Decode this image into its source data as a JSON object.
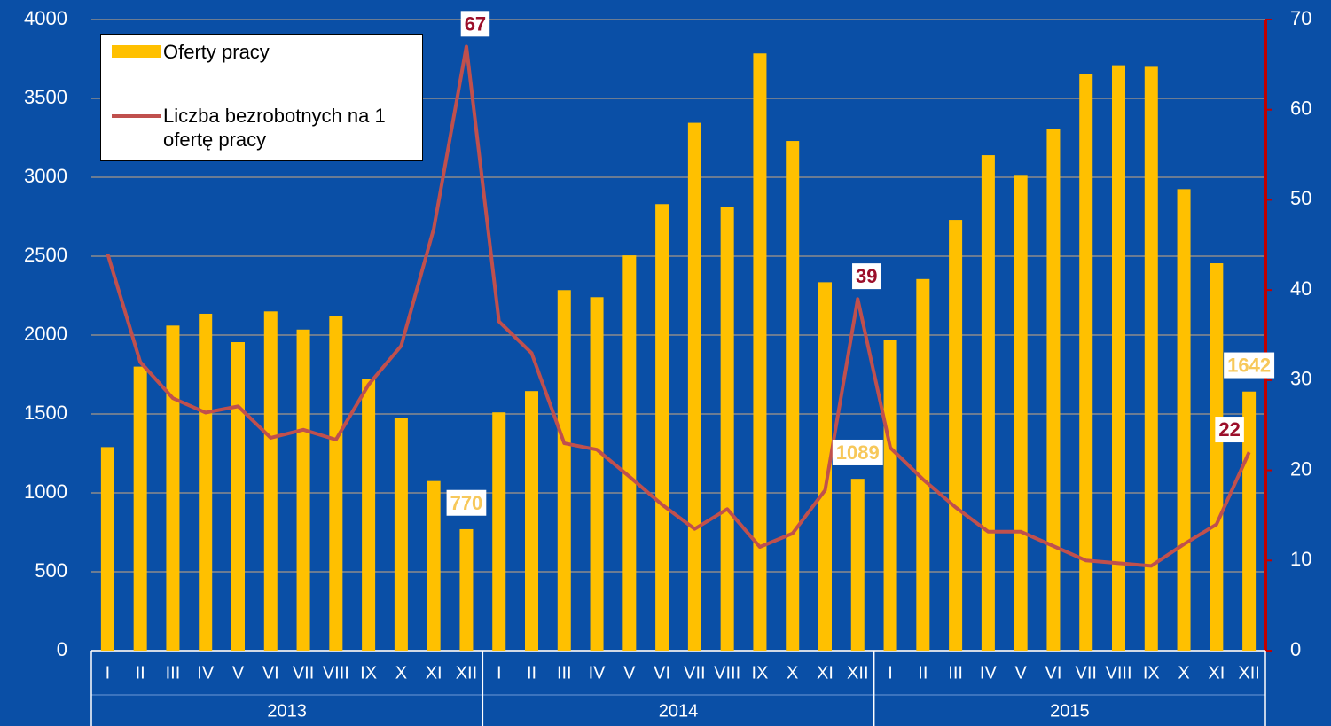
{
  "chart_data": {
    "type": "bar",
    "categories": [
      "I",
      "II",
      "III",
      "IV",
      "V",
      "VI",
      "VII",
      "VIII",
      "IX",
      "X",
      "XI",
      "XII",
      "I",
      "II",
      "III",
      "IV",
      "V",
      "VI",
      "VII",
      "VIII",
      "IX",
      "X",
      "XI",
      "XII",
      "I",
      "II",
      "III",
      "IV",
      "V",
      "VI",
      "VII",
      "VIII",
      "IX",
      "X",
      "XI",
      "XII"
    ],
    "year_groups": [
      "2013",
      "2014",
      "2015"
    ],
    "series": [
      {
        "name": "Oferty pracy",
        "type": "bar",
        "color": "#ffc000",
        "values": [
          1290,
          1800,
          2060,
          2135,
          1955,
          2150,
          2035,
          2120,
          1720,
          1475,
          1075,
          770,
          1510,
          1645,
          2285,
          2240,
          2505,
          2830,
          3345,
          2810,
          3785,
          3230,
          2335,
          1089,
          1970,
          2355,
          2730,
          3140,
          3015,
          3305,
          3655,
          3710,
          3700,
          2925,
          2455,
          1642
        ],
        "value_labels": [
          null,
          null,
          null,
          null,
          null,
          null,
          null,
          null,
          null,
          null,
          null,
          "770",
          null,
          null,
          null,
          null,
          null,
          null,
          null,
          null,
          null,
          null,
          null,
          "1089",
          null,
          null,
          null,
          null,
          null,
          null,
          null,
          null,
          null,
          null,
          null,
          "1642"
        ]
      },
      {
        "name": "Liczba bezrobotnych na 1 ofertę pracy",
        "type": "line",
        "axis": "y2",
        "color": "#c0504d",
        "values": [
          44,
          32,
          28,
          26.4,
          27.1,
          23.6,
          24.5,
          23.4,
          29.5,
          33.8,
          46.8,
          67,
          36.5,
          33,
          23,
          22.3,
          19.3,
          16.2,
          13.5,
          15.7,
          11.5,
          13,
          17.8,
          39,
          22.5,
          19,
          15.9,
          13.2,
          13.2,
          11.6,
          10,
          9.7,
          9.4,
          11.8,
          14,
          22
        ],
        "value_labels": [
          null,
          null,
          null,
          null,
          null,
          null,
          null,
          null,
          null,
          null,
          null,
          "67",
          null,
          null,
          null,
          null,
          null,
          null,
          null,
          null,
          null,
          null,
          null,
          "39",
          null,
          null,
          null,
          null,
          null,
          null,
          null,
          null,
          null,
          null,
          null,
          "22"
        ]
      }
    ],
    "ylim": [
      0,
      4000
    ],
    "yticks": [
      0,
      500,
      1000,
      1500,
      2000,
      2500,
      3000,
      3500,
      4000
    ],
    "y2lim": [
      0,
      70
    ],
    "y2ticks": [
      0,
      10,
      20,
      30,
      40,
      50,
      60,
      70
    ],
    "grid": true,
    "legend": "top-left"
  }
}
